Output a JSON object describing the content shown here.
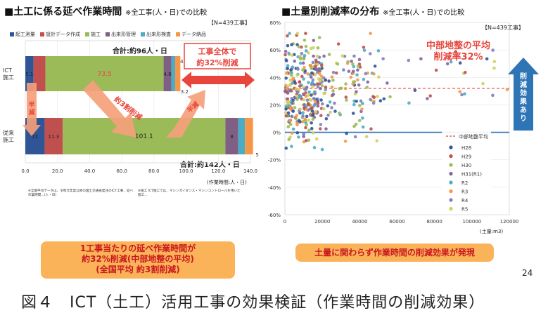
{
  "left_panel": {
    "title": "■土工に係る延べ作業時間",
    "subtitle": "※全工事(人・日)での比較",
    "n_label": "【N=439工事】",
    "total_ict": "合計:約96人・日",
    "total_conv": "合計:約142人・日",
    "reduction_text_1": "工事全体で",
    "reduction_text_2": "約32%削減",
    "arrow_label_3": "約3割削減",
    "arrow_label_half_left": "半減",
    "arrow_label_half_right": "半減",
    "x_axis_unit": "(作業時間:人・日)",
    "note_left": "※全国平均データは、令和元年度以降の国土交通省発注のICT工事、延べ作業時間...(人・日)",
    "note_right": "※施工 ICT施工では、マシンガイダンス・マシンコントロールを用いた施工...",
    "callout_line1": "1工事当たりの延べ作業時間が",
    "callout_line2": "約32%削減(中部地整の平均)",
    "callout_line3": "(全国平均 約3割削減)"
  },
  "right_panel": {
    "title": "■土量別削減率の分布",
    "subtitle": "※全工事(人・日)での比較",
    "n_label": "【N=439工事】",
    "avg_text_1": "中部地整の平均",
    "avg_text_2": "削減率32%",
    "side_arrow_text": "削減効果あり",
    "x_axis_unit": "(土量:m3)",
    "callout": "土量に関わらず作業時間の削減効果が発現"
  },
  "page_number": "24",
  "figure_caption": "図４　ICT（土工）活用工事の効果検証（作業時間の削減効果）",
  "colors": {
    "survey": "#2f5597",
    "design": "#c0504d",
    "construction": "#9bbb59",
    "form_mgmt": "#7f6084",
    "form_insp": "#4bacc6",
    "delivery": "#f79646",
    "arrow_orange": "#f5a07a",
    "arrow_red": "#e8453c",
    "arrow_blue": "#2e75b6",
    "avg_line": "#e8453c",
    "zero_line": "#2e75b6"
  },
  "chart_data": [
    {
      "type": "bar",
      "orientation": "horizontal",
      "stacked": true,
      "categories": [
        "ICT施工",
        "従来施工"
      ],
      "series": [
        {
          "name": "起工測量",
          "values": [
            5.1,
            12.0
          ],
          "color": "#2f5597"
        },
        {
          "name": "設計データ作成",
          "values": [
            7.4,
            11.3
          ],
          "color": "#c0504d"
        },
        {
          "name": "施工",
          "values": [
            73.5,
            101.1
          ],
          "color": "#9bbb59"
        },
        {
          "name": "出来形管理",
          "values": [
            4.8,
            8.0
          ],
          "color": "#7f6084"
        },
        {
          "name": "出来形検査",
          "values": [
            2.4,
            4.2
          ],
          "color": "#4bacc6"
        },
        {
          "name": "データ納品",
          "values": [
            3.2,
            5.0
          ],
          "color": "#f79646"
        }
      ],
      "x_ticks": [
        "0.0",
        "20.0",
        "40.0",
        "60.0",
        "80.0",
        "100.0",
        "120.0",
        "140.0"
      ],
      "xlim": [
        0,
        140
      ]
    },
    {
      "type": "scatter",
      "xlabel": "(土量:m3)",
      "x_ticks": [
        "0",
        "20000",
        "40000",
        "60000",
        "80000",
        "100000",
        "120000"
      ],
      "y_ticks": [
        "-60%",
        "-40%",
        "-20%",
        "0%",
        "20%",
        "40%",
        "60%",
        "80%"
      ],
      "xlim": [
        0,
        120000
      ],
      "ylim": [
        -60,
        80
      ],
      "avg_line": {
        "label": "中部地整平均",
        "value": 32
      },
      "legend": [
        {
          "name": "H28",
          "color": "#2f5597"
        },
        {
          "name": "H29",
          "color": "#c0504d"
        },
        {
          "name": "H30",
          "color": "#9bbb59"
        },
        {
          "name": "H31(R1)",
          "color": "#8064a2"
        },
        {
          "name": "R2",
          "color": "#4bacc6"
        },
        {
          "name": "R3",
          "color": "#f79646"
        },
        {
          "name": "R4",
          "color": "#7f7fbf"
        },
        {
          "name": "R5",
          "color": "#d0d060"
        }
      ]
    }
  ]
}
